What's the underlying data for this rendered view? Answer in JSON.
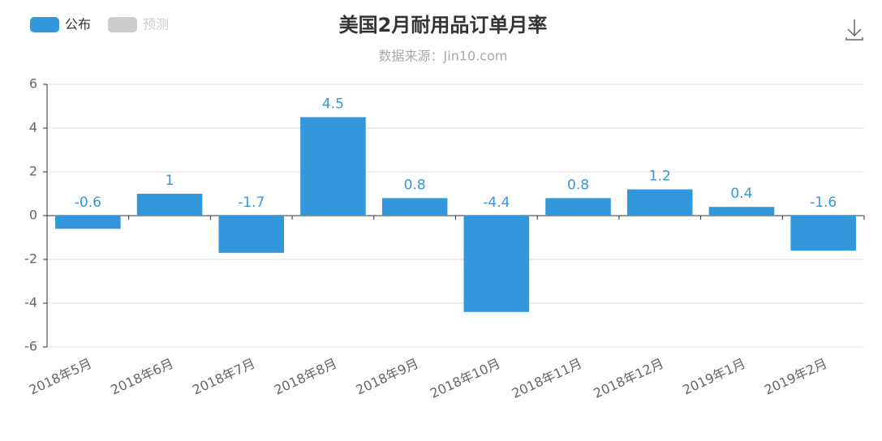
{
  "chart_data": {
    "type": "bar",
    "title": "美国2月耐用品订单月率",
    "subtitle": "数据来源：Jin10.com",
    "categories": [
      "2018年5月",
      "2018年6月",
      "2018年7月",
      "2018年8月",
      "2018年9月",
      "2018年10月",
      "2018年11月",
      "2018年12月",
      "2019年1月",
      "2019年2月"
    ],
    "series": [
      {
        "name": "公布",
        "color": "#3398db",
        "values": [
          -0.6,
          1,
          -1.7,
          4.5,
          0.8,
          -4.4,
          0.8,
          1.2,
          0.4,
          -1.6
        ]
      },
      {
        "name": "预测",
        "color": "#cccccc",
        "values": [
          null,
          null,
          null,
          null,
          null,
          null,
          null,
          null,
          null,
          null
        ]
      }
    ],
    "ylim": [
      -6,
      6
    ],
    "yticks": [
      -6,
      -4,
      -2,
      0,
      2,
      4,
      6
    ],
    "grid": true
  }
}
